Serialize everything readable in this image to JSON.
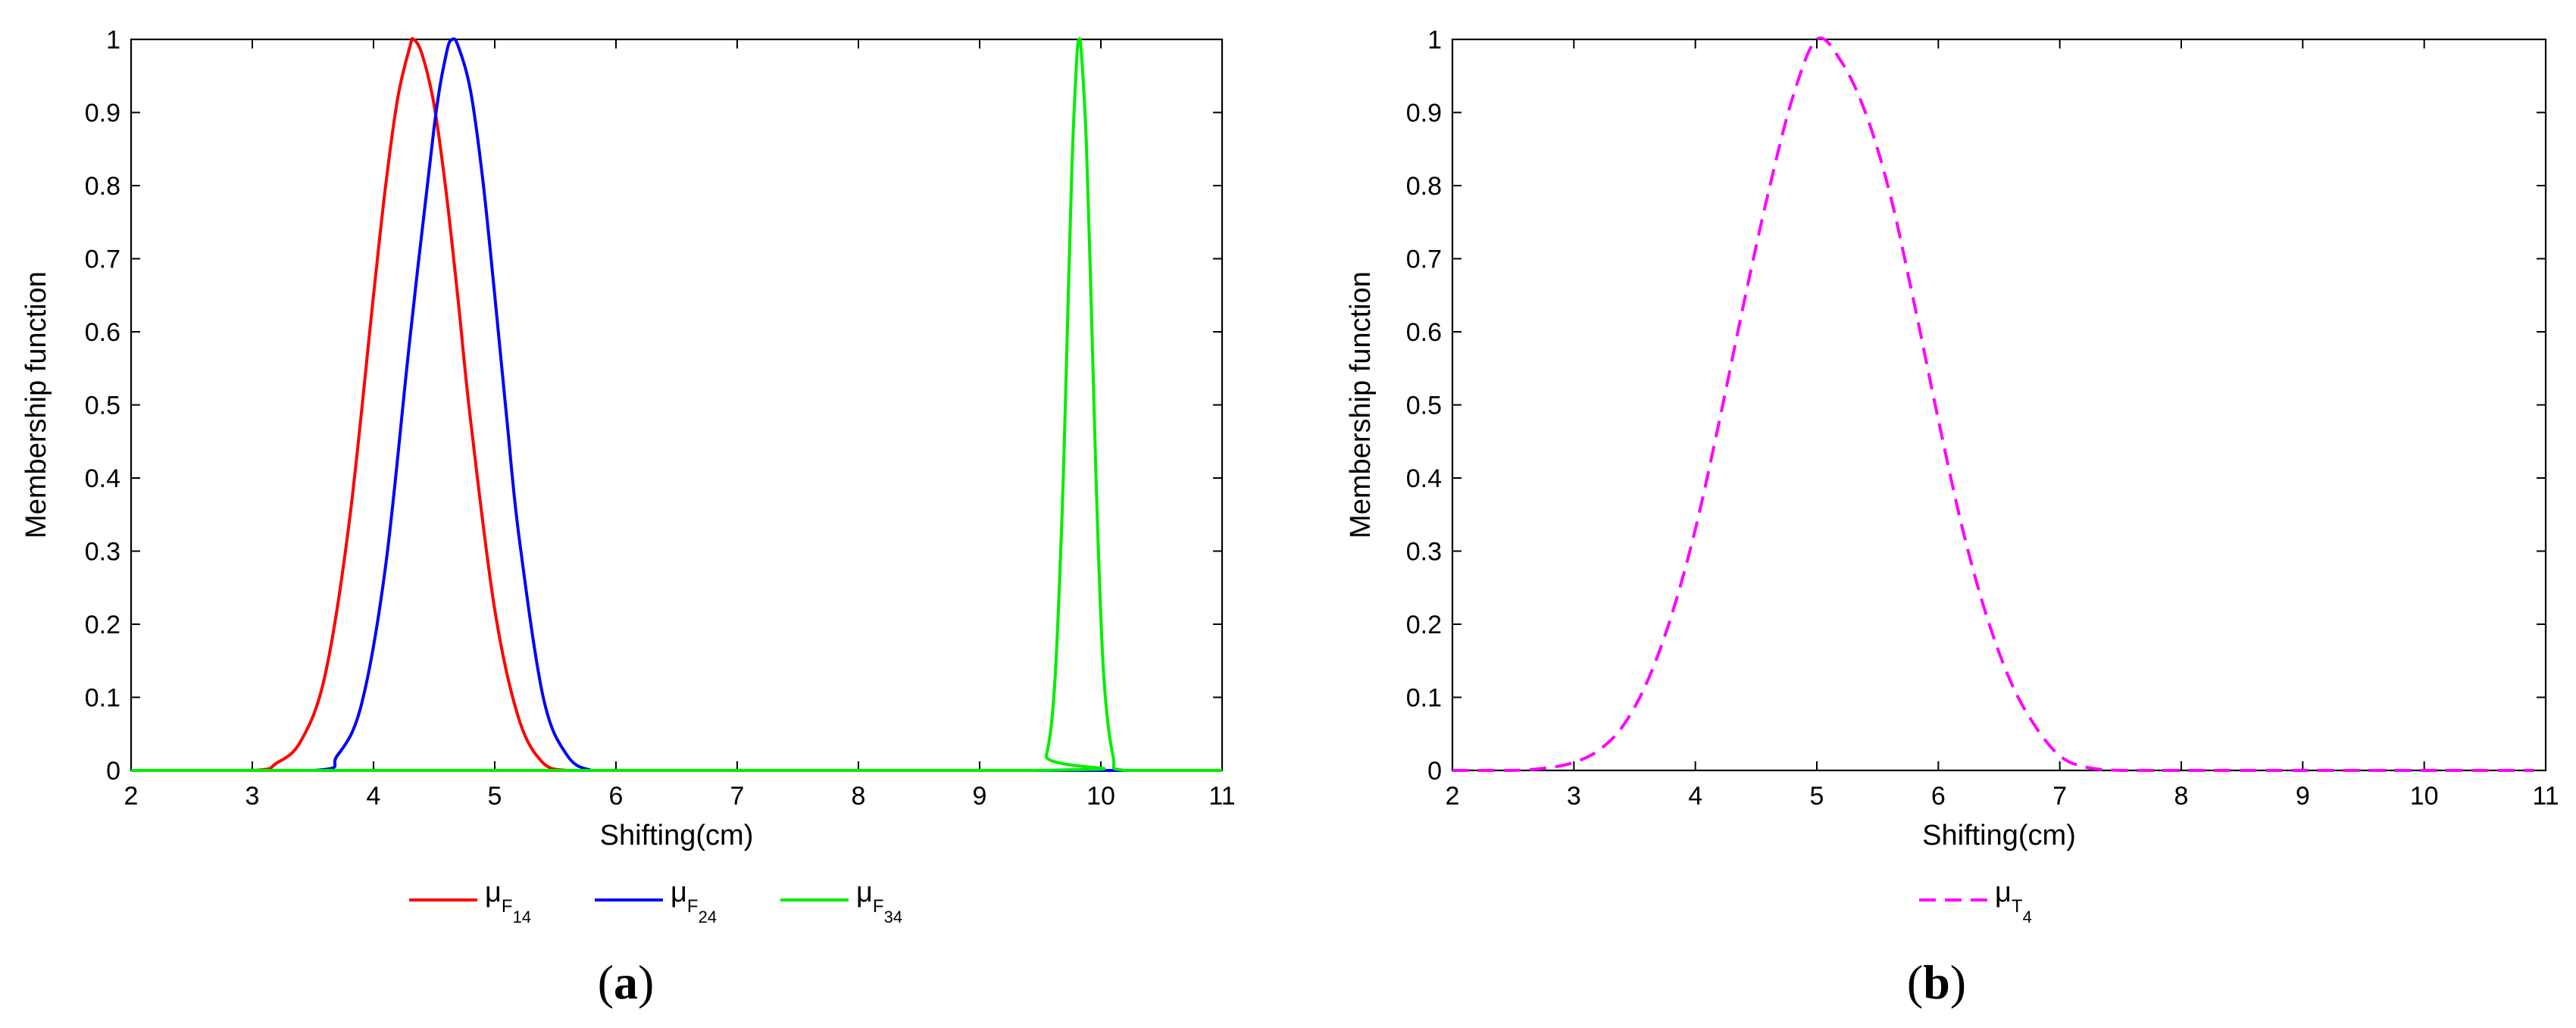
{
  "chart_data": [
    {
      "type": "line",
      "panel_label": "a",
      "xlabel": "Shifting(cm)",
      "ylabel": "Membership function",
      "xlim": [
        2,
        11
      ],
      "ylim": [
        0,
        1
      ],
      "x_ticks": [
        "2",
        "3",
        "4",
        "5",
        "6",
        "7",
        "8",
        "9",
        "10",
        "11"
      ],
      "y_ticks": [
        "0",
        "0.1",
        "0.2",
        "0.3",
        "0.4",
        "0.5",
        "0.6",
        "0.7",
        "0.8",
        "0.9",
        "1"
      ],
      "legend_position": "bottom",
      "series": [
        {
          "name": "μF14",
          "legend_main": "μ",
          "legend_sub": "F",
          "legend_subsub": "14",
          "color": "#ff0000",
          "style": "solid",
          "x": [
            2.0,
            3.0,
            3.2,
            3.4,
            3.6,
            3.8,
            4.0,
            4.1,
            4.2,
            4.3,
            4.33,
            4.4,
            4.5,
            4.6,
            4.7,
            4.8,
            5.0,
            5.2,
            5.4,
            5.6,
            6.0,
            11.0
          ],
          "y": [
            0,
            0,
            0.01,
            0.04,
            0.13,
            0.34,
            0.65,
            0.8,
            0.92,
            0.99,
            1.0,
            0.98,
            0.91,
            0.79,
            0.64,
            0.48,
            0.22,
            0.07,
            0.01,
            0,
            0,
            0
          ]
        },
        {
          "name": "μF24",
          "legend_main": "μ",
          "legend_sub": "F",
          "legend_subsub": "24",
          "color": "#0000ff",
          "style": "solid",
          "x": [
            2.0,
            3.5,
            3.7,
            3.9,
            4.1,
            4.3,
            4.5,
            4.6,
            4.65,
            4.7,
            4.8,
            4.9,
            5.0,
            5.1,
            5.2,
            5.4,
            5.6,
            5.8,
            6.0,
            9.5,
            9.7,
            11.0
          ],
          "y": [
            0,
            0,
            0.02,
            0.09,
            0.28,
            0.59,
            0.88,
            0.98,
            1.0,
            0.99,
            0.93,
            0.81,
            0.65,
            0.48,
            0.32,
            0.1,
            0.02,
            0,
            0,
            0,
            0,
            0
          ]
        },
        {
          "name": "μF34",
          "legend_main": "μ",
          "legend_sub": "F",
          "legend_subsub": "34",
          "color": "#00ee00",
          "style": "solid",
          "x": [
            2.0,
            9.45,
            9.55,
            9.62,
            9.68,
            9.72,
            9.76,
            9.8,
            9.82,
            9.84,
            9.88,
            9.92,
            9.96,
            10.02,
            10.1,
            10.2,
            11.0
          ],
          "y": [
            0,
            0,
            0.02,
            0.12,
            0.35,
            0.58,
            0.82,
            0.97,
            1.0,
            0.98,
            0.86,
            0.64,
            0.4,
            0.14,
            0.02,
            0,
            0
          ]
        }
      ]
    },
    {
      "type": "line",
      "panel_label": "b",
      "xlabel": "Shifting(cm)",
      "ylabel": "Membership function",
      "xlim": [
        2,
        11
      ],
      "ylim": [
        0,
        1
      ],
      "x_ticks": [
        "2",
        "3",
        "4",
        "5",
        "6",
        "7",
        "8",
        "9",
        "10",
        "11"
      ],
      "y_ticks": [
        "0",
        "0.1",
        "0.2",
        "0.3",
        "0.4",
        "0.5",
        "0.6",
        "0.7",
        "0.8",
        "0.9",
        "1"
      ],
      "legend_position": "bottom",
      "series": [
        {
          "name": "μT4",
          "legend_main": "μ",
          "legend_sub": "T",
          "legend_subsub": "4",
          "color": "#ff00ff",
          "style": "dashed",
          "x": [
            2.0,
            2.5,
            2.8,
            3.0,
            3.2,
            3.4,
            3.6,
            3.8,
            4.0,
            4.2,
            4.4,
            4.6,
            4.8,
            5.0,
            5.2,
            5.4,
            5.6,
            5.8,
            6.0,
            6.2,
            6.4,
            6.6,
            6.8,
            7.0,
            7.2,
            7.5,
            8.0,
            10.9
          ],
          "y": [
            0,
            0,
            0.004,
            0.011,
            0.027,
            0.06,
            0.12,
            0.21,
            0.33,
            0.48,
            0.64,
            0.79,
            0.92,
            1.0,
            0.97,
            0.9,
            0.79,
            0.64,
            0.48,
            0.33,
            0.21,
            0.12,
            0.06,
            0.02,
            0.005,
            0,
            0,
            0
          ]
        }
      ]
    }
  ]
}
